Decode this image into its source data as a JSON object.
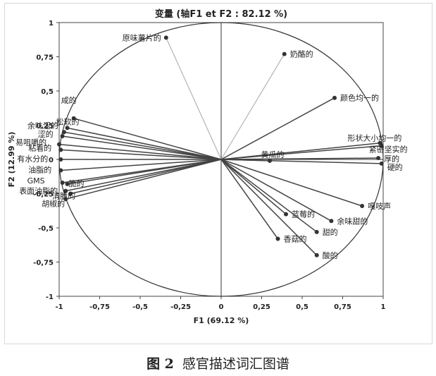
{
  "chart_data": {
    "type": "scatter",
    "title": "变量 (轴F1 et F2 : 82.12 %)",
    "xlabel": "F1 (69.12 %)",
    "ylabel": "F2 (12.99 %)",
    "xlim": [
      -1,
      1
    ],
    "ylim": [
      -1,
      1
    ],
    "x_ticks": [
      "-1",
      "-0,75",
      "-0,5",
      "-0,25",
      "0",
      "0,25",
      "0,5",
      "0,75",
      "1"
    ],
    "y_ticks": [
      "1",
      "0,75",
      "0,5",
      "0,25",
      "0",
      "-0,25",
      "-0,5",
      "-0,75",
      "-1"
    ],
    "x_tick_values": [
      -1,
      -0.75,
      -0.5,
      -0.25,
      0,
      0.25,
      0.5,
      0.75,
      1
    ],
    "y_tick_values": [
      1,
      0.75,
      0.5,
      0.25,
      0,
      -0.25,
      -0.5,
      -0.75,
      -1
    ],
    "grid": false,
    "correlation_circle": true,
    "colors": {
      "variable_vector": "#444444",
      "faded_vector": "#b3b3b3",
      "circle": "#333333",
      "axis": "#333333"
    },
    "points": [
      {
        "label": "原味薯片的",
        "x": -0.34,
        "y": 0.89,
        "faded": true
      },
      {
        "label": "奶酪的",
        "x": 0.39,
        "y": 0.77,
        "faded": true
      },
      {
        "label": "颜色均一的",
        "x": 0.7,
        "y": 0.45
      },
      {
        "label": "形状大小均一的",
        "x": 0.98,
        "y": 0.12
      },
      {
        "label": "紧密坚实的",
        "x": 0.99,
        "y": 0.1
      },
      {
        "label": "厚的",
        "x": 0.97,
        "y": 0.01
      },
      {
        "label": "硬的",
        "x": 0.99,
        "y": -0.03
      },
      {
        "label": "黄瓜的",
        "x": 0.3,
        "y": -0.01
      },
      {
        "label": "嘎吱声",
        "x": 0.87,
        "y": -0.34
      },
      {
        "label": "余味甜的",
        "x": 0.68,
        "y": -0.45
      },
      {
        "label": "蓝莓的",
        "x": 0.4,
        "y": -0.4
      },
      {
        "label": "甜的",
        "x": 0.59,
        "y": -0.53
      },
      {
        "label": "香菇的",
        "x": 0.35,
        "y": -0.58
      },
      {
        "label": "酸的",
        "x": 0.59,
        "y": -0.7
      },
      {
        "label": "咸的",
        "x": -0.91,
        "y": 0.3
      },
      {
        "label": "松软的",
        "x": -0.95,
        "y": 0.23
      },
      {
        "label": "余味涩的",
        "x": -0.97,
        "y": 0.2
      },
      {
        "label": "涩的",
        "x": -0.98,
        "y": 0.17
      },
      {
        "label": "易咀嚼的",
        "x": -1.0,
        "y": 0.11
      },
      {
        "label": "粘着的",
        "x": -0.99,
        "y": 0.07
      },
      {
        "label": "有水分的",
        "x": -0.99,
        "y": 0.0
      },
      {
        "label": "油脂的",
        "x": -0.99,
        "y": -0.08
      },
      {
        "label": "GMS",
        "x": -0.98,
        "y": -0.17
      },
      {
        "label": "脆的",
        "x": -0.95,
        "y": -0.18
      },
      {
        "label": "表面油脂的",
        "x": -0.96,
        "y": -0.23
      },
      {
        "label": "清脆的",
        "x": -0.93,
        "y": -0.25
      },
      {
        "label": "胡椒的",
        "x": -0.96,
        "y": -0.29
      }
    ]
  },
  "caption": {
    "figure_number": "图 2",
    "text": "感官描述词汇图谱"
  }
}
